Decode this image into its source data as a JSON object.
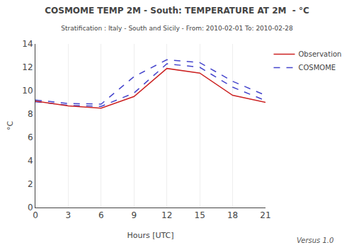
{
  "chart_data": {
    "type": "line",
    "title": "COSMOME TEMP 2M - South: TEMPERATURE AT 2M  - °C",
    "subtitle": "Stratification : Italy - South and Sicily - From: 2010-02-01 To: 2010-02-28",
    "x_label": "Hours [UTC]",
    "y_label": "°C",
    "annotations": [
      "Versus 1.0"
    ],
    "x": [
      0,
      3,
      6,
      9,
      12,
      15,
      18,
      21
    ],
    "series": [
      {
        "name": "COSMOME",
        "color": "#4444cc",
        "line_style": "dashed",
        "values": [
          9.2,
          8.9,
          8.85,
          11.2,
          12.65,
          12.4,
          10.8,
          9.6
        ]
      },
      {
        "name": "COSMOME",
        "color": "#4444cc",
        "line_style": "dashed",
        "values": [
          9.05,
          8.75,
          8.65,
          9.8,
          12.3,
          12.0,
          10.3,
          9.15
        ]
      },
      {
        "name": "Observation",
        "color": "#cc2222",
        "line_style": "solid",
        "values": [
          9.1,
          8.7,
          8.5,
          9.5,
          11.9,
          11.5,
          9.6,
          9.0
        ]
      }
    ],
    "xlim": [
      0,
      21
    ],
    "ylim": [
      0,
      14
    ],
    "xticks": [
      0,
      3,
      6,
      9,
      12,
      15,
      18,
      21
    ],
    "yticks": [
      0,
      2,
      4,
      6,
      8,
      10,
      12,
      14
    ],
    "grid": "x",
    "legend": "right"
  }
}
